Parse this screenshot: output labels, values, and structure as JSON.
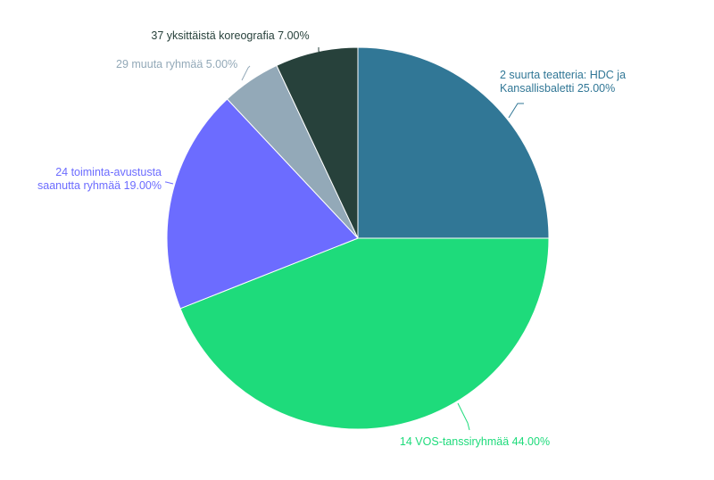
{
  "chart_data": {
    "type": "pie",
    "title": "",
    "slices": [
      {
        "label_lines": [
          "2 suurta teatteria: HDC ja",
          "Kansallisbaletti 25.00%"
        ],
        "category": "2 suurta teatteria: HDC ja Kansallisbaletti",
        "value": 25.0,
        "color": "#317796"
      },
      {
        "label_lines": [
          "14 VOS-tanssiryhmää 44.00%"
        ],
        "category": "14 VOS-tanssiryhmää",
        "value": 44.0,
        "color": "#1edb7b"
      },
      {
        "label_lines": [
          "24 toiminta-avustusta",
          "saanutta ryhmää 19.00%"
        ],
        "category": "24 toiminta-avustusta saanutta ryhmää",
        "value": 19.0,
        "color": "#6c6cff"
      },
      {
        "label_lines": [
          "29 muuta ryhmää 5.00%"
        ],
        "category": "29 muuta ryhmää",
        "value": 5.0,
        "color": "#93a9b8"
      },
      {
        "label_lines": [
          "37 yksittäistä koreografia 7.00%"
        ],
        "category": "37 yksittäistä koreografia",
        "value": 7.0,
        "color": "#27413b"
      }
    ],
    "start_angle": "12 o'clock",
    "direction": "clockwise",
    "legend": "none",
    "grid": false
  }
}
